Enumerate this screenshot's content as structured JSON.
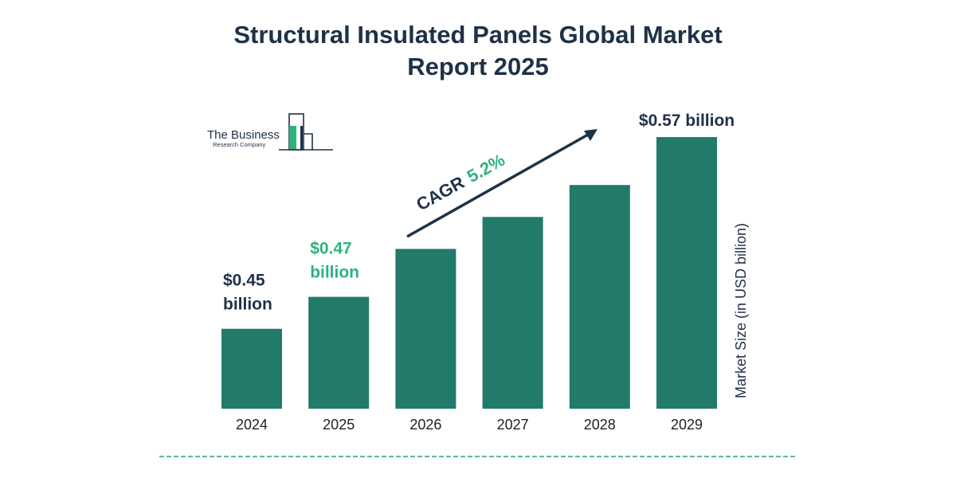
{
  "title": "Structural Insulated Panels Global Market Report 2025",
  "logo": {
    "name_line1": "The Business",
    "name_line2": "Research Company"
  },
  "cagr": {
    "label": "CAGR",
    "value": "5.2%"
  },
  "colors": {
    "bar": "#217a6a",
    "text_dark": "#1f3147",
    "accent_green": "#2db47d",
    "divider": "#2a9b8c"
  },
  "chart_data": {
    "type": "bar",
    "title": "Structural Insulated Panels Global Market Report 2025",
    "categories": [
      "2024",
      "2025",
      "2026",
      "2027",
      "2028",
      "2029"
    ],
    "values": [
      0.45,
      0.47,
      0.5,
      0.52,
      0.54,
      0.57
    ],
    "ylabel": "Market Size (in USD billion)",
    "xlabel": "",
    "ylim": [
      0.4,
      0.58
    ],
    "grid": false,
    "data_labels": [
      {
        "category": "2024",
        "line1": "$0.45",
        "line2": "billion",
        "color": "#1f3147"
      },
      {
        "category": "2025",
        "line1": "$0.47",
        "line2": "billion",
        "color": "#2db47d"
      },
      {
        "category": "2029",
        "line1": "$0.57 billion",
        "line2": "",
        "color": "#1f3147"
      }
    ]
  }
}
